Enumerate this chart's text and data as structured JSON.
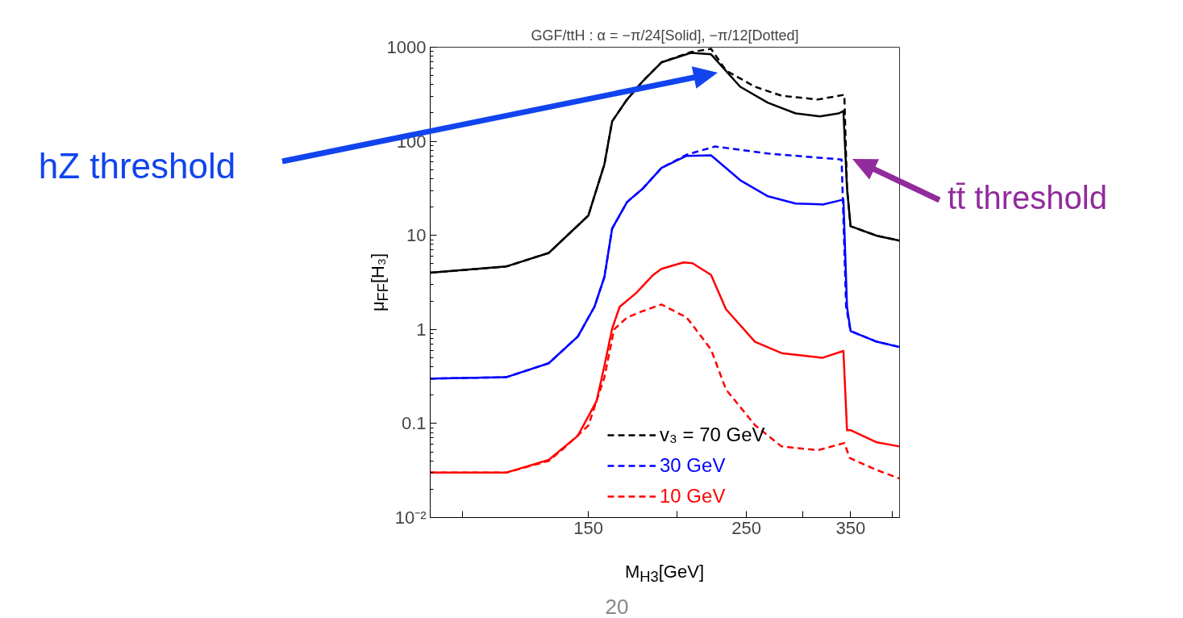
{
  "chart_data": {
    "type": "line",
    "title": "GGF/ttH : α = −π/24[Solid], −π/12[Dotted]",
    "xlabel": "M$_{H3}$[GeV]",
    "ylabel": "μ$_{FF}$[H₃]",
    "log": "xy",
    "grid": false,
    "legend": "bottom right",
    "xlim": [
      90,
      410
    ],
    "ylim": [
      0.01,
      1000
    ],
    "xticks": [
      {
        "value": 100,
        "label": null
      },
      150,
      {
        "value": 200,
        "label": null
      },
      250,
      {
        "value": 300,
        "label": null
      },
      350,
      {
        "value": 400,
        "label": null
      }
    ],
    "yticks": [
      {
        "value": 0.01,
        "label": "10⁻²"
      },
      0.1,
      1,
      10,
      100,
      1000
    ],
    "series": [
      {
        "color": "#000000",
        "line_style": "solid",
        "x": [
          90,
          115,
          132,
          150,
          158,
          162,
          170,
          179,
          190,
          209,
          223,
          245,
          268,
          293,
          317,
          337,
          342,
          346,
          350,
          381,
          410
        ],
        "values": [
          4,
          4.66,
          6.5,
          16.2,
          57,
          163,
          278,
          438,
          690,
          870,
          840,
          380,
          257,
          198,
          184,
          198,
          210,
          31.6,
          12.5,
          9.9,
          8.8
        ]
      },
      {
        "name": "v₃ = 70 GeV",
        "color": "#000000",
        "line_style": "dashed",
        "x": [
          90,
          115,
          132,
          150,
          158,
          162,
          170,
          179,
          190,
          209,
          223,
          234,
          257,
          280,
          315,
          343,
          346,
          350,
          381,
          410
        ],
        "values": [
          4,
          4.66,
          6.5,
          16.2,
          57,
          163,
          278,
          438,
          690,
          890,
          960,
          565,
          380,
          305,
          278,
          312,
          31.6,
          12.5,
          9.9,
          8.8
        ]
      },
      {
        "color": "#0000ff",
        "line_style": "solid",
        "x": [
          90,
          115,
          132,
          145,
          153,
          158,
          162,
          170,
          179,
          190,
          206,
          223,
          245,
          268,
          293,
          320,
          342,
          346,
          350,
          381,
          410
        ],
        "values": [
          0.3,
          0.31,
          0.437,
          0.84,
          1.74,
          3.6,
          11.8,
          22.6,
          31.6,
          52,
          70,
          71,
          38.6,
          26,
          21.8,
          21.3,
          24,
          1.74,
          0.96,
          0.74,
          0.65
        ]
      },
      {
        "name": "30 GeV",
        "color": "#0000ff",
        "line_style": "dashed",
        "x": [
          90,
          115,
          132,
          145,
          153,
          158,
          162,
          170,
          179,
          190,
          206,
          226,
          268,
          340,
          345,
          350,
          381,
          410
        ],
        "values": [
          0.3,
          0.31,
          0.437,
          0.84,
          1.74,
          3.6,
          11.8,
          22.6,
          31.6,
          52,
          72,
          88,
          74,
          64,
          1.74,
          0.96,
          0.74,
          0.65
        ]
      },
      {
        "color": "#ff0000",
        "line_style": "solid",
        "x": [
          90,
          115,
          132,
          145,
          154,
          158,
          162,
          166,
          175,
          185,
          190,
          204,
          210,
          223,
          234,
          257,
          280,
          320,
          342,
          346,
          350,
          381,
          410
        ],
        "values": [
          0.03,
          0.03,
          0.041,
          0.074,
          0.172,
          0.41,
          1.02,
          1.74,
          2.43,
          3.8,
          4.4,
          5.16,
          5.05,
          3.8,
          1.64,
          0.74,
          0.56,
          0.5,
          0.59,
          0.085,
          0.085,
          0.063,
          0.057
        ]
      },
      {
        "name": "10 GeV",
        "color": "#ff0000",
        "line_style": "dashed",
        "x": [
          90,
          115,
          132,
          138,
          150,
          158,
          163,
          170,
          179,
          190,
          206,
          209,
          223,
          234,
          257,
          280,
          315,
          343,
          349,
          381,
          410
        ],
        "values": [
          0.03,
          0.03,
          0.04,
          0.053,
          0.095,
          0.31,
          1.0,
          1.34,
          1.57,
          1.84,
          1.34,
          1.17,
          0.61,
          0.23,
          0.096,
          0.057,
          0.052,
          0.062,
          0.043,
          0.032,
          0.026
        ]
      }
    ],
    "annotations": [
      "hZ threshold",
      "tt̄ threshold",
      "20"
    ]
  }
}
